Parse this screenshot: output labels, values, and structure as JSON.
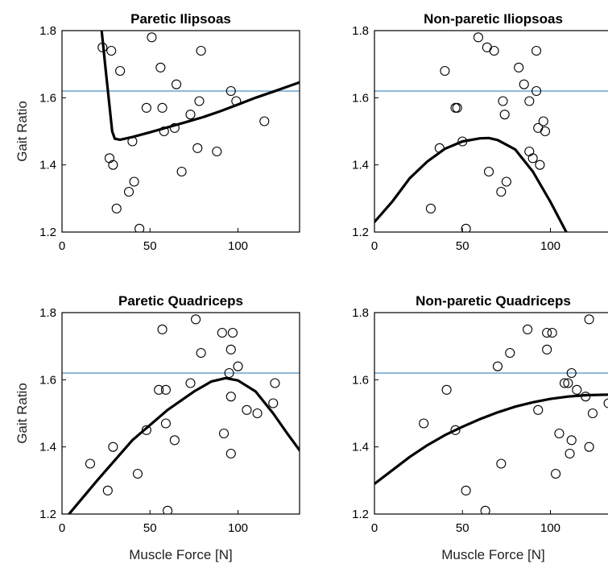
{
  "chart_data": [
    {
      "type": "scatter",
      "title": "Paretic Ilipsoas",
      "ylabel": "Gait Ratio",
      "xlabel": "",
      "xlim": [
        0,
        135
      ],
      "ylim": [
        1.2,
        1.8
      ],
      "xticks": [
        0,
        50,
        100
      ],
      "yticks": [
        1.2,
        1.4,
        1.6,
        1.8
      ],
      "xtick_labels": [
        "0",
        "50",
        "100"
      ],
      "ytick_labels": [
        "1.2",
        "1.4",
        "1.6",
        "1.8"
      ],
      "reference_line": 1.62,
      "colors": {
        "reference": "#4a90c8",
        "fit": "#000000",
        "points": "#000000"
      },
      "points": [
        [
          23,
          1.75
        ],
        [
          27,
          1.42
        ],
        [
          28,
          1.74
        ],
        [
          29,
          1.4
        ],
        [
          31,
          1.27
        ],
        [
          33,
          1.68
        ],
        [
          38,
          1.32
        ],
        [
          40,
          1.47
        ],
        [
          41,
          1.35
        ],
        [
          44,
          1.21
        ],
        [
          48,
          1.57
        ],
        [
          51,
          1.78
        ],
        [
          56,
          1.69
        ],
        [
          57,
          1.57
        ],
        [
          58,
          1.5
        ],
        [
          64,
          1.51
        ],
        [
          65,
          1.64
        ],
        [
          68,
          1.38
        ],
        [
          73,
          1.55
        ],
        [
          77,
          1.45
        ],
        [
          78,
          1.59
        ],
        [
          79,
          1.74
        ],
        [
          88,
          1.44
        ],
        [
          96,
          1.62
        ],
        [
          99,
          1.59
        ],
        [
          115,
          1.53
        ]
      ],
      "fit": [
        [
          22.5,
          1.8
        ],
        [
          23.5,
          1.75
        ],
        [
          24.5,
          1.7
        ],
        [
          25.5,
          1.65
        ],
        [
          26.5,
          1.6
        ],
        [
          27.5,
          1.55
        ],
        [
          28.5,
          1.5
        ],
        [
          30,
          1.478
        ],
        [
          33,
          1.475
        ],
        [
          40,
          1.483
        ],
        [
          50,
          1.497
        ],
        [
          60,
          1.512
        ],
        [
          70,
          1.527
        ],
        [
          80,
          1.542
        ],
        [
          90,
          1.56
        ],
        [
          100,
          1.58
        ],
        [
          110,
          1.6
        ],
        [
          120,
          1.618
        ],
        [
          135,
          1.646
        ]
      ]
    },
    {
      "type": "scatter",
      "title": "Non-paretic Iliopsoas",
      "ylabel": "",
      "xlabel": "",
      "xlim": [
        0,
        135
      ],
      "ylim": [
        1.2,
        1.8
      ],
      "xticks": [
        0,
        50,
        100
      ],
      "yticks": [
        1.2,
        1.4,
        1.6,
        1.8
      ],
      "xtick_labels": [
        "0",
        "50",
        "100"
      ],
      "ytick_labels": [
        "1.2",
        "1.4",
        "1.6",
        "1.8"
      ],
      "reference_line": 1.62,
      "colors": {
        "reference": "#4a90c8",
        "fit": "#000000",
        "points": "#000000"
      },
      "points": [
        [
          32,
          1.27
        ],
        [
          37,
          1.45
        ],
        [
          40,
          1.68
        ],
        [
          46,
          1.57
        ],
        [
          47,
          1.57
        ],
        [
          50,
          1.47
        ],
        [
          52,
          1.21
        ],
        [
          59,
          1.78
        ],
        [
          64,
          1.75
        ],
        [
          65,
          1.38
        ],
        [
          68,
          1.74
        ],
        [
          72,
          1.32
        ],
        [
          73,
          1.59
        ],
        [
          74,
          1.55
        ],
        [
          75,
          1.35
        ],
        [
          82,
          1.69
        ],
        [
          85,
          1.64
        ],
        [
          88,
          1.59
        ],
        [
          88,
          1.44
        ],
        [
          90,
          1.42
        ],
        [
          92,
          1.74
        ],
        [
          92,
          1.62
        ],
        [
          93,
          1.51
        ],
        [
          94,
          1.4
        ],
        [
          96,
          1.53
        ],
        [
          97,
          1.5
        ]
      ],
      "fit": [
        [
          0,
          1.23
        ],
        [
          10,
          1.29
        ],
        [
          20,
          1.36
        ],
        [
          30,
          1.41
        ],
        [
          40,
          1.448
        ],
        [
          50,
          1.47
        ],
        [
          60,
          1.479
        ],
        [
          65,
          1.48
        ],
        [
          70,
          1.474
        ],
        [
          80,
          1.446
        ],
        [
          90,
          1.38
        ],
        [
          100,
          1.29
        ],
        [
          105,
          1.24
        ],
        [
          109,
          1.2
        ]
      ]
    },
    {
      "type": "scatter",
      "title": "Paretic Quadriceps",
      "ylabel": "Gait Ratio",
      "xlabel": "Muscle Force [N]",
      "xlim": [
        0,
        135
      ],
      "ylim": [
        1.2,
        1.8
      ],
      "xticks": [
        0,
        50,
        100
      ],
      "yticks": [
        1.2,
        1.4,
        1.6,
        1.8
      ],
      "xtick_labels": [
        "0",
        "50",
        "100"
      ],
      "ytick_labels": [
        "1.2",
        "1.4",
        "1.6",
        "1.8"
      ],
      "reference_line": 1.62,
      "colors": {
        "reference": "#4a90c8",
        "fit": "#000000",
        "points": "#000000"
      },
      "points": [
        [
          16,
          1.35
        ],
        [
          26,
          1.27
        ],
        [
          29,
          1.4
        ],
        [
          43,
          1.32
        ],
        [
          48,
          1.45
        ],
        [
          55,
          1.57
        ],
        [
          57,
          1.75
        ],
        [
          59,
          1.57
        ],
        [
          59,
          1.47
        ],
        [
          60,
          1.21
        ],
        [
          64,
          1.42
        ],
        [
          73,
          1.59
        ],
        [
          76,
          1.78
        ],
        [
          79,
          1.68
        ],
        [
          91,
          1.74
        ],
        [
          92,
          1.44
        ],
        [
          95,
          1.62
        ],
        [
          96,
          1.69
        ],
        [
          96,
          1.55
        ],
        [
          96,
          1.38
        ],
        [
          97,
          1.74
        ],
        [
          100,
          1.64
        ],
        [
          105,
          1.51
        ],
        [
          111,
          1.5
        ],
        [
          120,
          1.53
        ],
        [
          121,
          1.59
        ]
      ],
      "fit": [
        [
          4,
          1.2
        ],
        [
          20,
          1.3
        ],
        [
          40,
          1.42
        ],
        [
          60,
          1.51
        ],
        [
          75,
          1.565
        ],
        [
          85,
          1.595
        ],
        [
          93,
          1.605
        ],
        [
          100,
          1.598
        ],
        [
          110,
          1.565
        ],
        [
          120,
          1.5
        ],
        [
          128,
          1.44
        ],
        [
          135,
          1.39
        ]
      ]
    },
    {
      "type": "scatter",
      "title": "Non-paretic Quadriceps",
      "ylabel": "",
      "xlabel": "Muscle Force [N]",
      "xlim": [
        0,
        135
      ],
      "ylim": [
        1.2,
        1.8
      ],
      "xticks": [
        0,
        50,
        100
      ],
      "yticks": [
        1.2,
        1.4,
        1.6,
        1.8
      ],
      "xtick_labels": [
        "0",
        "50",
        "100"
      ],
      "ytick_labels": [
        "1.2",
        "1.4",
        "1.6",
        "1.8"
      ],
      "reference_line": 1.62,
      "colors": {
        "reference": "#4a90c8",
        "fit": "#000000",
        "points": "#000000"
      },
      "points": [
        [
          28,
          1.47
        ],
        [
          41,
          1.57
        ],
        [
          46,
          1.45
        ],
        [
          52,
          1.27
        ],
        [
          63,
          1.21
        ],
        [
          70,
          1.64
        ],
        [
          72,
          1.35
        ],
        [
          77,
          1.68
        ],
        [
          87,
          1.75
        ],
        [
          93,
          1.51
        ],
        [
          98,
          1.74
        ],
        [
          98,
          1.69
        ],
        [
          101,
          1.74
        ],
        [
          103,
          1.32
        ],
        [
          105,
          1.44
        ],
        [
          108,
          1.59
        ],
        [
          110,
          1.59
        ],
        [
          111,
          1.38
        ],
        [
          112,
          1.62
        ],
        [
          112,
          1.42
        ],
        [
          115,
          1.57
        ],
        [
          120,
          1.55
        ],
        [
          122,
          1.78
        ],
        [
          122,
          1.4
        ],
        [
          124,
          1.5
        ],
        [
          133,
          1.53
        ]
      ],
      "fit": [
        [
          0,
          1.29
        ],
        [
          10,
          1.33
        ],
        [
          20,
          1.37
        ],
        [
          30,
          1.405
        ],
        [
          40,
          1.435
        ],
        [
          50,
          1.46
        ],
        [
          60,
          1.483
        ],
        [
          70,
          1.503
        ],
        [
          80,
          1.52
        ],
        [
          90,
          1.533
        ],
        [
          100,
          1.543
        ],
        [
          110,
          1.55
        ],
        [
          120,
          1.554
        ],
        [
          135,
          1.556
        ]
      ]
    }
  ]
}
